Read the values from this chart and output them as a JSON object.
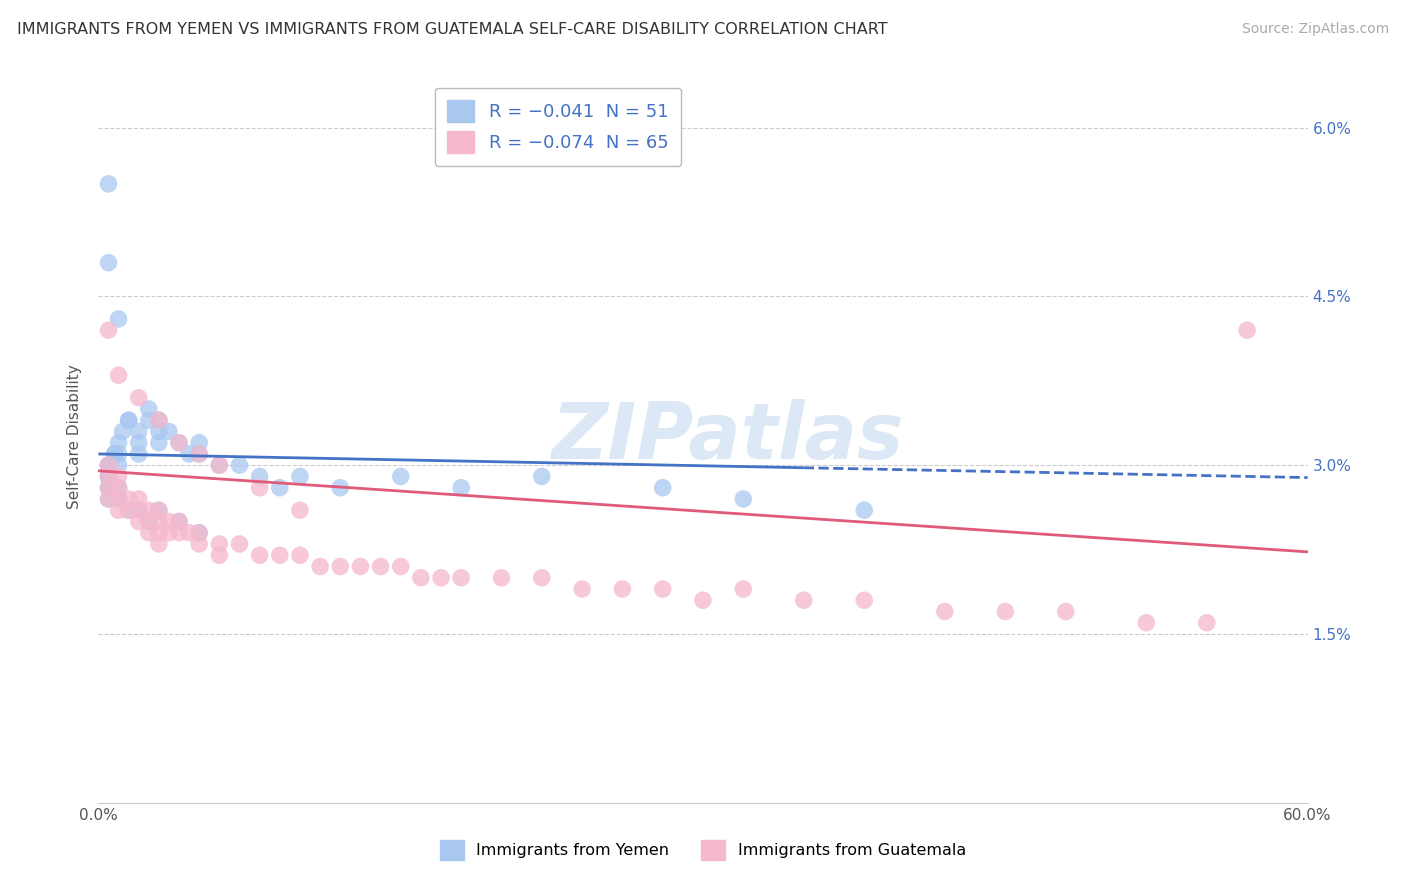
{
  "title": "IMMIGRANTS FROM YEMEN VS IMMIGRANTS FROM GUATEMALA SELF-CARE DISABILITY CORRELATION CHART",
  "source": "Source: ZipAtlas.com",
  "ylabel": "Self-Care Disability",
  "xlim": [
    0.0,
    0.6
  ],
  "ylim": [
    0.0,
    0.065
  ],
  "xticks": [
    0.0,
    0.1,
    0.2,
    0.3,
    0.4,
    0.5,
    0.6
  ],
  "xtick_labels": [
    "0.0%",
    "",
    "",
    "",
    "",
    "",
    "60.0%"
  ],
  "yticks": [
    0.0,
    0.015,
    0.03,
    0.045,
    0.06
  ],
  "ytick_labels_right": [
    "",
    "1.5%",
    "3.0%",
    "4.5%",
    "6.0%"
  ],
  "color_yemen": "#a8c8f0",
  "color_guatemala": "#f5b8cc",
  "line_color_yemen": "#4472c4",
  "line_color_guatemala": "#e05a7a",
  "watermark": "ZIPatlas",
  "yemen_x": [
    0.005,
    0.005,
    0.005,
    0.005,
    0.005,
    0.005,
    0.005,
    0.008,
    0.008,
    0.01,
    0.01,
    0.01,
    0.01,
    0.01,
    0.012,
    0.015,
    0.015,
    0.015,
    0.02,
    0.02,
    0.02,
    0.02,
    0.025,
    0.025,
    0.025,
    0.03,
    0.03,
    0.03,
    0.03,
    0.035,
    0.04,
    0.04,
    0.045,
    0.05,
    0.05,
    0.05,
    0.06,
    0.07,
    0.08,
    0.09,
    0.1,
    0.12,
    0.15,
    0.18,
    0.22,
    0.28,
    0.32,
    0.38,
    0.005,
    0.005,
    0.01
  ],
  "yemen_y": [
    0.029,
    0.029,
    0.03,
    0.03,
    0.028,
    0.028,
    0.027,
    0.031,
    0.031,
    0.032,
    0.031,
    0.03,
    0.028,
    0.027,
    0.033,
    0.034,
    0.034,
    0.026,
    0.033,
    0.032,
    0.031,
    0.026,
    0.035,
    0.034,
    0.025,
    0.034,
    0.033,
    0.032,
    0.026,
    0.033,
    0.032,
    0.025,
    0.031,
    0.032,
    0.031,
    0.024,
    0.03,
    0.03,
    0.029,
    0.028,
    0.029,
    0.028,
    0.029,
    0.028,
    0.029,
    0.028,
    0.027,
    0.026,
    0.055,
    0.048,
    0.043
  ],
  "guatemala_x": [
    0.005,
    0.005,
    0.005,
    0.005,
    0.01,
    0.01,
    0.01,
    0.01,
    0.015,
    0.015,
    0.02,
    0.02,
    0.02,
    0.025,
    0.025,
    0.025,
    0.03,
    0.03,
    0.03,
    0.03,
    0.035,
    0.035,
    0.04,
    0.04,
    0.045,
    0.05,
    0.05,
    0.06,
    0.06,
    0.07,
    0.08,
    0.09,
    0.1,
    0.11,
    0.12,
    0.13,
    0.14,
    0.15,
    0.16,
    0.17,
    0.18,
    0.2,
    0.22,
    0.24,
    0.26,
    0.28,
    0.3,
    0.32,
    0.35,
    0.38,
    0.42,
    0.45,
    0.48,
    0.52,
    0.55,
    0.005,
    0.01,
    0.02,
    0.03,
    0.04,
    0.05,
    0.06,
    0.08,
    0.1,
    0.57
  ],
  "guatemala_y": [
    0.03,
    0.029,
    0.028,
    0.027,
    0.029,
    0.028,
    0.027,
    0.026,
    0.027,
    0.026,
    0.027,
    0.026,
    0.025,
    0.026,
    0.025,
    0.024,
    0.026,
    0.025,
    0.024,
    0.023,
    0.025,
    0.024,
    0.025,
    0.024,
    0.024,
    0.024,
    0.023,
    0.023,
    0.022,
    0.023,
    0.022,
    0.022,
    0.022,
    0.021,
    0.021,
    0.021,
    0.021,
    0.021,
    0.02,
    0.02,
    0.02,
    0.02,
    0.02,
    0.019,
    0.019,
    0.019,
    0.018,
    0.019,
    0.018,
    0.018,
    0.017,
    0.017,
    0.017,
    0.016,
    0.016,
    0.042,
    0.038,
    0.036,
    0.034,
    0.032,
    0.031,
    0.03,
    0.028,
    0.026,
    0.042
  ],
  "yemen_line_solid_xlim": [
    0.0,
    0.35
  ],
  "yemen_line_dashed_xlim": [
    0.35,
    0.6
  ],
  "yemen_line_y_intercept": 0.031,
  "yemen_line_slope": -0.0035,
  "guatemala_line_y_intercept": 0.0295,
  "guatemala_line_slope": -0.012
}
